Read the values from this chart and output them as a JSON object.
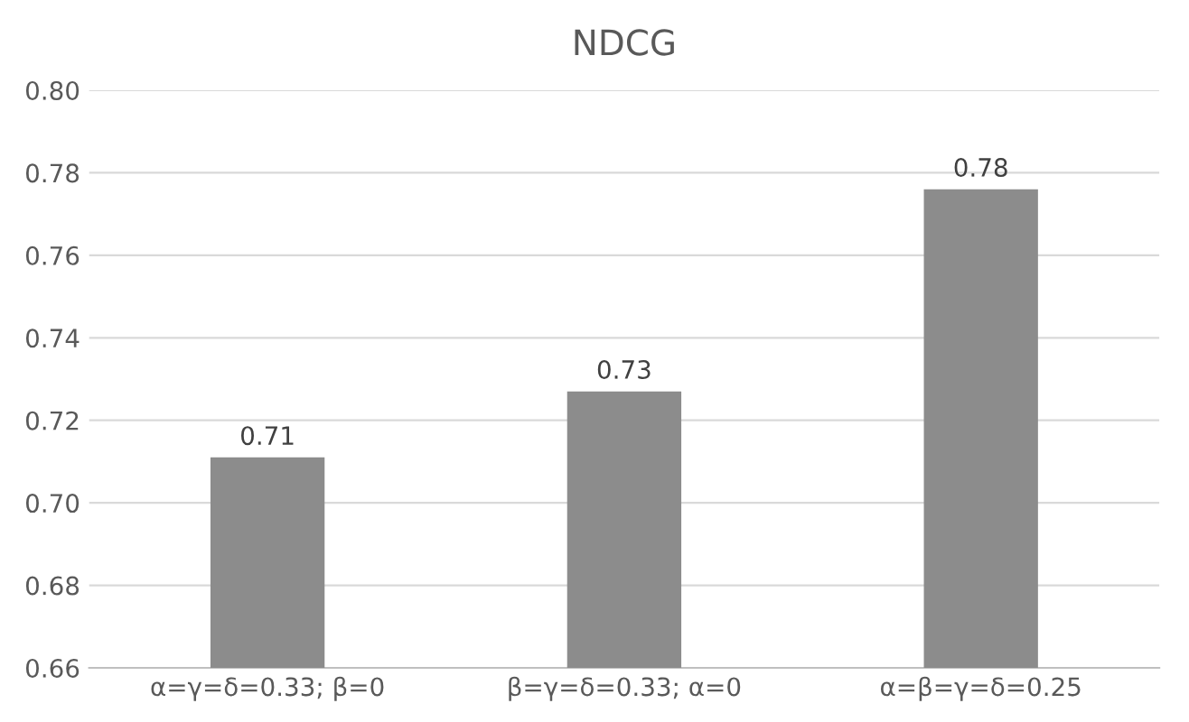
{
  "chart_data": {
    "type": "bar",
    "title": "NDCG",
    "categories": [
      "α=γ=δ=0.33; β=0",
      "β=γ=δ=0.33; α=0",
      "α=β=γ=δ=0.25"
    ],
    "values": [
      0.711,
      0.727,
      0.776
    ],
    "value_labels": [
      "0.71",
      "0.73",
      "0.78"
    ],
    "color": "#8c8c8c",
    "ylim": [
      0.66,
      0.8
    ],
    "yticks": [
      {
        "value": 0.66,
        "label": "0.66"
      },
      {
        "value": 0.68,
        "label": "0.68"
      },
      {
        "value": 0.7,
        "label": "0.70"
      },
      {
        "value": 0.72,
        "label": "0.72"
      },
      {
        "value": 0.74,
        "label": "0.74"
      },
      {
        "value": 0.76,
        "label": "0.76"
      },
      {
        "value": 0.78,
        "label": "0.78"
      },
      {
        "value": 0.8,
        "label": "0.80"
      }
    ],
    "grid": "y",
    "legend": false
  }
}
